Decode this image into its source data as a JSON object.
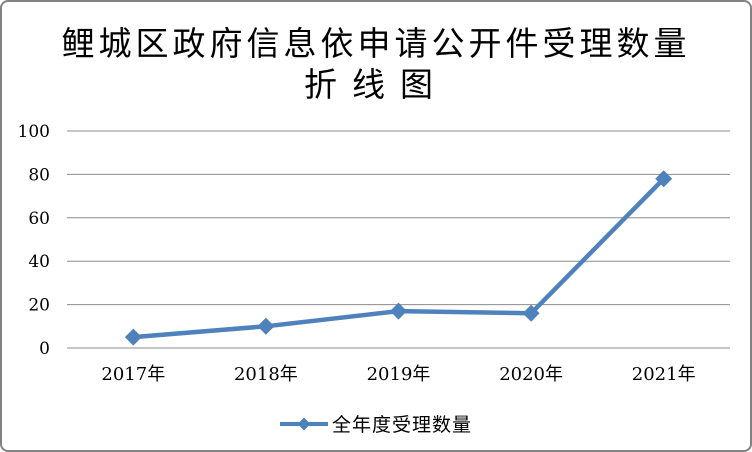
{
  "chart_data": {
    "type": "line",
    "title": "鲤城区政府信息依申请公开件受理数量",
    "subtitle": "折线图",
    "categories": [
      "2017年",
      "2018年",
      "2019年",
      "2020年",
      "2021年"
    ],
    "series": [
      {
        "name": "全年度受理数量",
        "values": [
          5,
          10,
          17,
          16,
          78
        ]
      }
    ],
    "xlabel": "",
    "ylabel": "",
    "ylim": [
      0,
      100
    ],
    "yticks": [
      0,
      20,
      40,
      60,
      80,
      100
    ],
    "grid": true,
    "marker": "diamond",
    "legend_position": "bottom"
  },
  "colors": {
    "series": "#4F81BD",
    "gridline": "#8C8C8C",
    "text": "#000000",
    "frame_border": "#828282",
    "background": "#FFFFFF"
  }
}
